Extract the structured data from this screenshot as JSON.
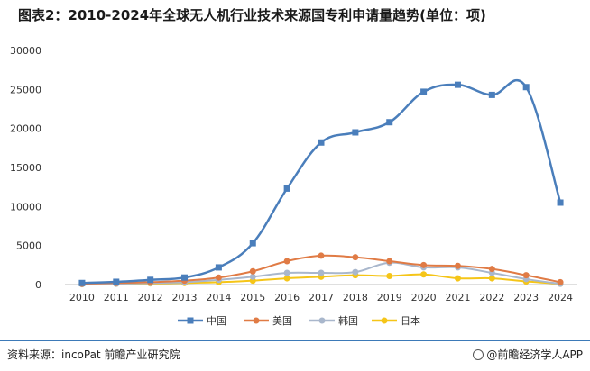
{
  "title": "图表2：2010-2024年全球无人机行业技术来源国专利申请量趋势(单位：项)",
  "footer": {
    "source": "资料来源：incoPat 前瞻产业研究院",
    "brand": "@前瞻经济学人APP"
  },
  "colors": {
    "china": "#4a7ebb",
    "usa": "#e07b45",
    "korea": "#a9b7cc",
    "japan": "#f5c518",
    "rule": "#3d7ab8"
  },
  "chart_data": {
    "type": "line",
    "x": [
      "2010",
      "2011",
      "2012",
      "2013",
      "2014",
      "2015",
      "2016",
      "2017",
      "2018",
      "2019",
      "2020",
      "2021",
      "2022",
      "2023",
      "2024"
    ],
    "ylim": [
      0,
      30000
    ],
    "yticks": [
      0,
      5000,
      10000,
      15000,
      20000,
      25000,
      30000
    ],
    "legend_position": "bottom",
    "series": [
      {
        "name": "中国",
        "marker": "square",
        "values": [
          200,
          350,
          600,
          900,
          2200,
          5300,
          12300,
          18200,
          19500,
          20800,
          24700,
          25600,
          24300,
          25300,
          10500
        ]
      },
      {
        "name": "美国",
        "marker": "circle",
        "values": [
          100,
          200,
          300,
          500,
          900,
          1700,
          3000,
          3700,
          3500,
          3000,
          2500,
          2400,
          2000,
          1200,
          300
        ]
      },
      {
        "name": "韩国",
        "marker": "circle",
        "values": [
          50,
          100,
          200,
          300,
          600,
          1000,
          1500,
          1500,
          1600,
          2800,
          2200,
          2200,
          1500,
          700,
          100
        ]
      },
      {
        "name": "日本",
        "marker": "circle",
        "values": [
          50,
          100,
          150,
          200,
          300,
          500,
          800,
          1000,
          1200,
          1100,
          1300,
          800,
          800,
          400,
          100
        ]
      }
    ]
  }
}
